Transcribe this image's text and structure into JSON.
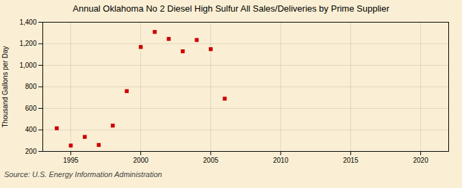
{
  "chart_data": {
    "type": "scatter",
    "title": "Annual Oklahoma No 2 Diesel High Sulfur All Sales/Deliveries by Prime Supplier",
    "ylabel": "Thousand Gallons per Day",
    "source": "Source: U.S. Energy Information Administration",
    "x": [
      1994,
      1995,
      1996,
      1997,
      1998,
      1999,
      2000,
      2001,
      2002,
      2003,
      2004,
      2005,
      2006
    ],
    "values": [
      415,
      255,
      335,
      260,
      440,
      760,
      1170,
      1310,
      1245,
      1130,
      1235,
      1150,
      690
    ],
    "color": "#cc0000",
    "marker": "square",
    "xlim": [
      1993,
      2022
    ],
    "ylim": [
      200,
      1400
    ],
    "xticks": [
      1995,
      2000,
      2005,
      2010,
      2015,
      2020
    ],
    "yticks": [
      200,
      400,
      600,
      800,
      {
        "value": 1000,
        "label": "1,000"
      },
      {
        "value": 1200,
        "label": "1,200"
      },
      {
        "value": 1400,
        "label": "1,400"
      }
    ],
    "grid": true
  }
}
